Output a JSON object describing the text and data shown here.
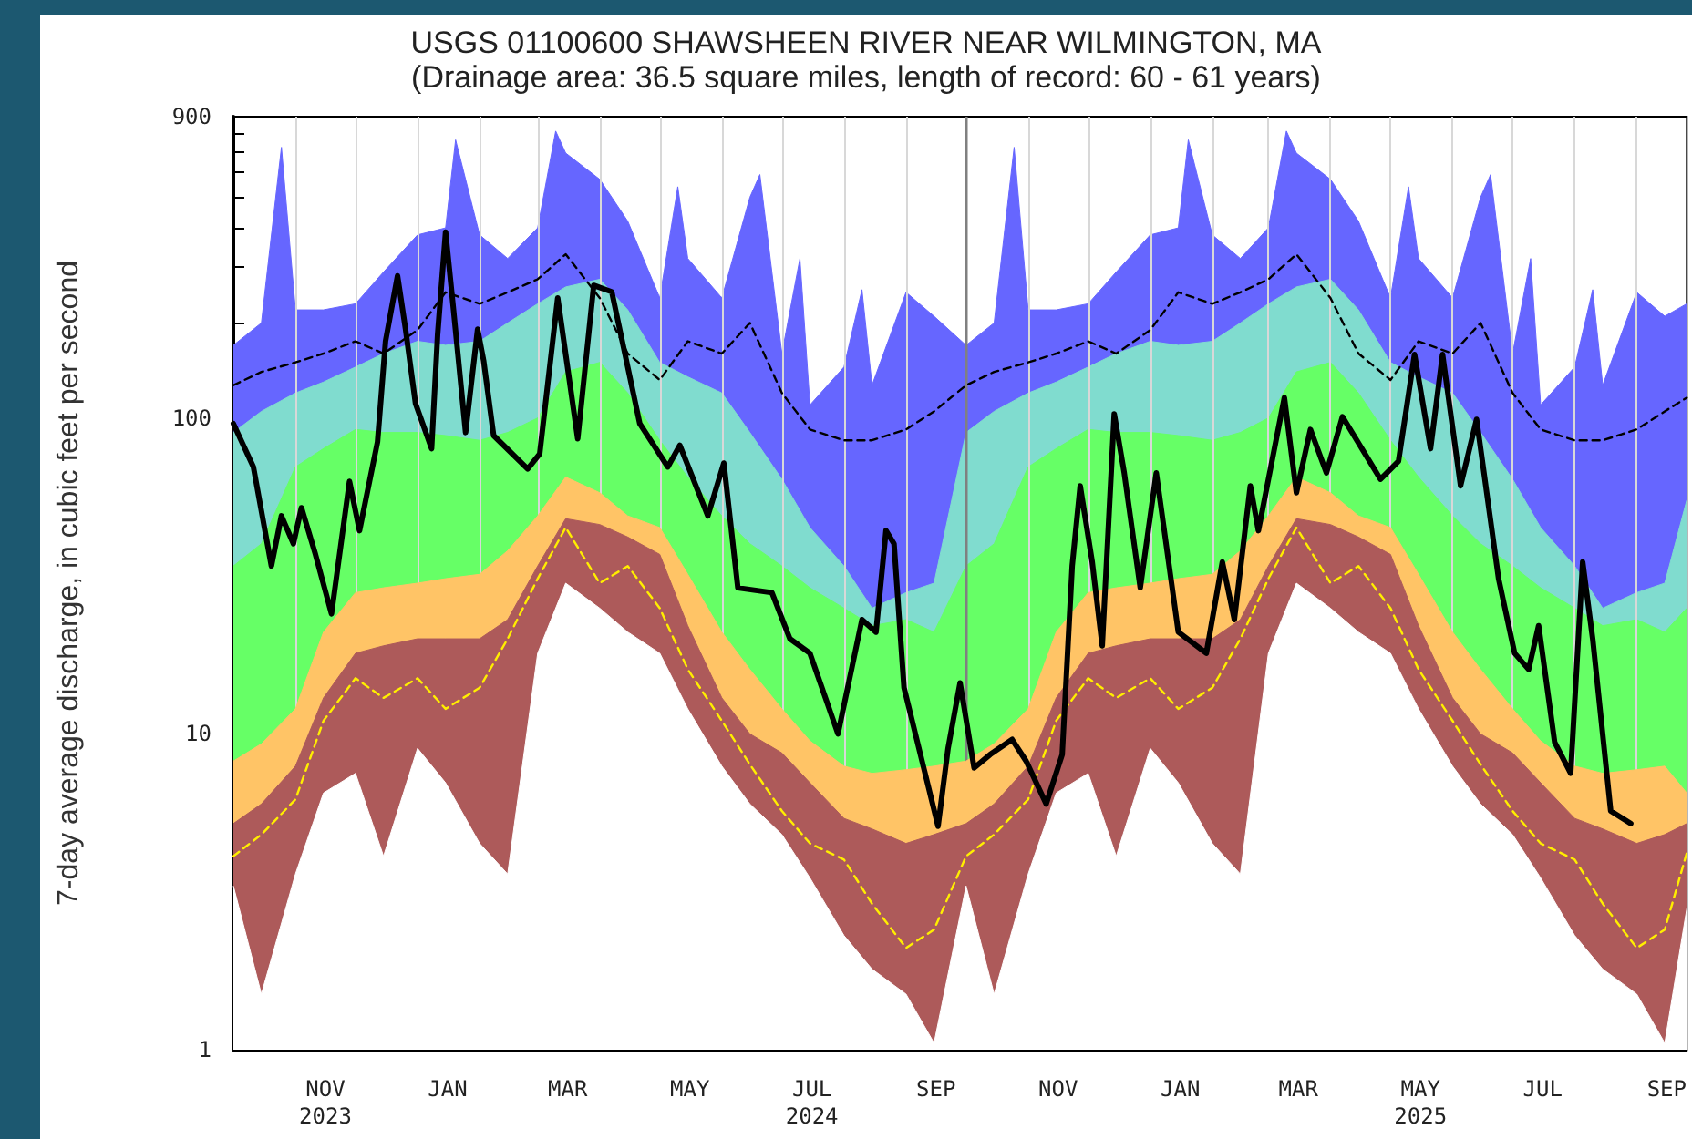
{
  "chart_data": {
    "type": "area",
    "title": "USGS 01100600 SHAWSHEEN RIVER NEAR WILMINGTON, MA",
    "subtitle": "(Drainage area: 36.5 square miles, length of record: 60 - 61 years)",
    "ylabel": "7-day average discharge, in cubic feet per second",
    "log": "y",
    "grid": "x",
    "xlim": [
      "2023-10-01",
      "2025-09-26"
    ],
    "ylim": [
      1,
      900
    ],
    "xticks": [
      {
        "value": "2023-11-01",
        "label": null
      },
      {
        "value": "2023-11-16",
        "label": "NOV\n2023"
      },
      {
        "value": "2023-12-01",
        "label": null
      },
      {
        "value": "2024-01-01",
        "label": null
      },
      {
        "value": "2024-01-16",
        "label": "JAN"
      },
      {
        "value": "2024-02-01",
        "label": null
      },
      {
        "value": "2024-03-01",
        "label": null
      },
      {
        "value": "2024-03-16",
        "label": "MAR"
      },
      {
        "value": "2024-04-01",
        "label": null
      },
      {
        "value": "2024-05-01",
        "label": null
      },
      {
        "value": "2024-05-16",
        "label": "MAY"
      },
      {
        "value": "2024-06-01",
        "label": null
      },
      {
        "value": "2024-07-01",
        "label": null
      },
      {
        "value": "2024-07-16",
        "label": "JUL\n2024"
      },
      {
        "value": "2024-08-01",
        "label": null
      },
      {
        "value": "2024-09-01",
        "label": null
      },
      {
        "value": "2024-09-16",
        "label": "SEP"
      },
      {
        "value": "2024-11-01",
        "label": null
      },
      {
        "value": "2024-11-16",
        "label": "NOV"
      },
      {
        "value": "2024-12-01",
        "label": null
      },
      {
        "value": "2025-01-01",
        "label": null
      },
      {
        "value": "2025-01-16",
        "label": "JAN"
      },
      {
        "value": "2025-02-01",
        "label": null
      },
      {
        "value": "2025-03-01",
        "label": null
      },
      {
        "value": "2025-03-16",
        "label": "MAR"
      },
      {
        "value": "2025-04-01",
        "label": null
      },
      {
        "value": "2025-05-01",
        "label": null
      },
      {
        "value": "2025-05-16",
        "label": "MAY\n2025"
      },
      {
        "value": "2025-06-01",
        "label": null
      },
      {
        "value": "2025-07-01",
        "label": null
      },
      {
        "value": "2025-07-16",
        "label": "JUL"
      },
      {
        "value": "2025-08-01",
        "label": null
      },
      {
        "value": "2025-09-01",
        "label": null
      },
      {
        "value": "2025-09-16",
        "label": "SEP"
      }
    ],
    "yticks": [
      1,
      {
        "value": 2,
        "label": null
      },
      {
        "value": 3,
        "label": null
      },
      {
        "value": 4,
        "label": null
      },
      {
        "value": 5,
        "label": null
      },
      {
        "value": 6,
        "label": null
      },
      {
        "value": 7,
        "label": null
      },
      {
        "value": 8,
        "label": null
      },
      {
        "value": 9,
        "label": null
      },
      10,
      {
        "value": 20,
        "label": null
      },
      {
        "value": 30,
        "label": null
      },
      {
        "value": 40,
        "label": null
      },
      {
        "value": 50,
        "label": null
      },
      {
        "value": 60,
        "label": null
      },
      {
        "value": 70,
        "label": null
      },
      {
        "value": 80,
        "label": null
      },
      {
        "value": 90,
        "label": null
      },
      100,
      {
        "value": 200,
        "label": null
      },
      {
        "value": 300,
        "label": null
      },
      {
        "value": 400,
        "label": null
      },
      {
        "value": 500,
        "label": null
      },
      {
        "value": 600,
        "label": null
      },
      {
        "value": 700,
        "label": null
      },
      {
        "value": 800,
        "label": null
      },
      900
    ],
    "ref_lines": [
      {
        "axis": "x",
        "value": "2024-10-01",
        "color": "#808080"
      }
    ],
    "x": [
      "2023-10-01",
      "2023-10-15",
      "2023-11-01",
      "2023-11-15",
      "2023-12-01",
      "2023-12-15",
      "2024-01-01",
      "2024-01-15",
      "2024-02-01",
      "2024-02-15",
      "2024-03-01",
      "2024-03-15",
      "2024-04-01",
      "2024-04-15",
      "2024-05-01",
      "2024-05-15",
      "2024-06-01",
      "2024-06-15",
      "2024-07-01",
      "2024-07-15",
      "2024-08-01",
      "2024-08-15",
      "2024-09-01",
      "2024-09-15",
      "2024-10-01",
      "2024-10-15",
      "2024-11-01",
      "2024-11-15",
      "2024-12-01",
      "2024-12-15",
      "2025-01-01",
      "2025-01-15",
      "2025-02-01",
      "2025-02-15",
      "2025-03-01",
      "2025-03-15",
      "2025-04-01",
      "2025-04-15",
      "2025-05-01",
      "2025-05-15",
      "2025-06-01",
      "2025-06-15",
      "2025-07-01",
      "2025-07-15",
      "2025-08-01",
      "2025-08-15",
      "2025-09-01",
      "2025-09-15",
      "2025-09-26"
    ],
    "series": [
      {
        "color": "#6666ff",
        "x": [
          "2023-10-01",
          "2023-10-15",
          "2023-10-25",
          "2023-11-01",
          "2023-11-15",
          "2023-12-01",
          "2023-12-15",
          "2024-01-01",
          "2024-01-15",
          "2024-01-20",
          "2024-02-01",
          "2024-02-15",
          "2024-03-01",
          "2024-03-10",
          "2024-03-15",
          "2024-04-01",
          "2024-04-15",
          "2024-05-01",
          "2024-05-10",
          "2024-05-15",
          "2024-06-01",
          "2024-06-15",
          "2024-06-20",
          "2024-07-01",
          "2024-07-10",
          "2024-07-15",
          "2024-08-01",
          "2024-08-10",
          "2024-08-15",
          "2024-09-01",
          "2024-09-15",
          "2024-10-01",
          "2024-10-15",
          "2024-10-25",
          "2024-11-01",
          "2024-11-15",
          "2024-12-01",
          "2024-12-15",
          "2025-01-01",
          "2025-01-15",
          "2025-01-20",
          "2025-02-01",
          "2025-02-15",
          "2025-03-01",
          "2025-03-10",
          "2025-03-15",
          "2025-04-01",
          "2025-04-15",
          "2025-05-01",
          "2025-05-10",
          "2025-05-15",
          "2025-06-01",
          "2025-06-15",
          "2025-06-20",
          "2025-07-01",
          "2025-07-10",
          "2025-07-15",
          "2025-08-01",
          "2025-08-10",
          "2025-08-15",
          "2025-09-01",
          "2025-09-15",
          "2025-09-26"
        ],
        "values": [
          170,
          200,
          720,
          220,
          220,
          230,
          290,
          380,
          400,
          760,
          380,
          320,
          400,
          810,
          690,
          570,
          420,
          240,
          540,
          320,
          240,
          500,
          590,
          160,
          320,
          110,
          145,
          255,
          127,
          250,
          210,
          170,
          200,
          720,
          220,
          220,
          230,
          290,
          380,
          400,
          760,
          380,
          320,
          400,
          810,
          690,
          570,
          420,
          240,
          540,
          320,
          240,
          500,
          590,
          160,
          320,
          110,
          145,
          255,
          127,
          250,
          210,
          230
        ]
      },
      {
        "color": "#80dccf",
        "values": [
          90,
          105,
          120,
          130,
          145,
          160,
          175,
          170,
          175,
          200,
          230,
          260,
          275,
          220,
          150,
          135,
          120,
          90,
          64,
          45,
          34,
          25,
          28,
          30,
          90,
          105,
          120,
          130,
          145,
          160,
          175,
          170,
          175,
          200,
          230,
          260,
          275,
          220,
          150,
          135,
          120,
          90,
          64,
          45,
          34,
          25,
          28,
          30,
          55
        ]
      },
      {
        "color": "#66ff66",
        "values": [
          34,
          40,
          70,
          80,
          92,
          90,
          90,
          88,
          85,
          90,
          100,
          140,
          150,
          120,
          85,
          65,
          49,
          40,
          34,
          29,
          25,
          22,
          23,
          21,
          34,
          40,
          70,
          80,
          92,
          90,
          90,
          88,
          85,
          90,
          100,
          140,
          150,
          120,
          85,
          65,
          49,
          40,
          34,
          29,
          25,
          22,
          23,
          21,
          25
        ]
      },
      {
        "color": "#ffc466",
        "values": [
          8.2,
          9.3,
          12,
          21,
          28,
          29,
          30,
          31,
          32,
          38,
          49,
          65,
          58,
          49,
          45,
          32,
          21,
          16,
          12,
          9.5,
          7.9,
          7.5,
          7.7,
          7.9,
          8.2,
          9.3,
          12,
          21,
          28,
          29,
          30,
          31,
          32,
          38,
          49,
          65,
          58,
          49,
          45,
          32,
          21,
          16,
          12,
          9.5,
          7.9,
          7.5,
          7.7,
          7.9,
          6.5
        ]
      },
      {
        "color": "#ad5a5a",
        "values": [
          5.2,
          6,
          7.9,
          13,
          18,
          19,
          20,
          20,
          20,
          23,
          34,
          48,
          46,
          42,
          37,
          22,
          13,
          10,
          8.7,
          7,
          5.4,
          5,
          4.5,
          4.8,
          5.2,
          6,
          7.9,
          13,
          18,
          19,
          20,
          20,
          20,
          23,
          34,
          48,
          46,
          42,
          37,
          22,
          13,
          10,
          8.7,
          7,
          5.4,
          5,
          4.5,
          4.8,
          5.2
        ]
      },
      {
        "color": "#ffffff",
        "values": [
          3.3,
          1.5,
          3.6,
          6.5,
          7.5,
          4.1,
          9,
          7,
          4.5,
          3.6,
          18,
          30,
          25,
          21,
          18,
          12,
          7.9,
          6,
          4.8,
          3.5,
          2.3,
          1.8,
          1.5,
          1.05,
          3.3,
          1.5,
          3.6,
          6.5,
          7.5,
          4.1,
          9,
          7,
          4.5,
          3.6,
          18,
          30,
          25,
          21,
          18,
          12,
          7.9,
          6,
          4.8,
          3.5,
          2.3,
          1.8,
          1.5,
          1.05,
          2.8
        ]
      },
      {
        "type": "line",
        "color": "#ffee00",
        "line_style": "dashed",
        "values": [
          4.1,
          4.8,
          6.2,
          11,
          15,
          13,
          15,
          12,
          14,
          20,
          31,
          45,
          30,
          34,
          25,
          16,
          11,
          8,
          5.7,
          4.5,
          4,
          2.9,
          2.1,
          2.4,
          4.1,
          4.8,
          6.2,
          11,
          15,
          13,
          15,
          12,
          14,
          20,
          31,
          45,
          30,
          34,
          25,
          16,
          11,
          8,
          5.7,
          4.5,
          4,
          2.9,
          2.1,
          2.4,
          4.2
        ]
      },
      {
        "type": "line",
        "color": "#000000",
        "line_style": "dashed",
        "values": [
          127,
          140,
          150,
          160,
          175,
          160,
          190,
          250,
          230,
          250,
          275,
          330,
          240,
          160,
          132,
          175,
          160,
          200,
          120,
          92,
          85,
          85,
          92,
          105,
          127,
          140,
          150,
          160,
          175,
          160,
          190,
          250,
          230,
          250,
          275,
          330,
          240,
          160,
          132,
          175,
          160,
          200,
          120,
          92,
          85,
          85,
          92,
          105,
          116
        ]
      },
      {
        "type": "line",
        "color": "#000000",
        "line_style": "solid",
        "x": [
          "2023-10-01",
          "2023-10-11",
          "2023-10-20",
          "2023-10-25",
          "2023-10-31",
          "2023-11-04",
          "2023-11-11",
          "2023-11-19",
          "2023-11-28",
          "2023-12-03",
          "2023-12-12",
          "2023-12-16",
          "2023-12-22",
          "2023-12-26",
          "2023-12-31",
          "2024-01-08",
          "2024-01-11",
          "2024-01-15",
          "2024-01-19",
          "2024-01-25",
          "2024-01-31",
          "2024-02-03",
          "2024-02-08",
          "2024-02-25",
          "2024-03-02",
          "2024-03-11",
          "2024-03-21",
          "2024-03-29",
          "2024-04-07",
          "2024-04-21",
          "2024-05-05",
          "2024-05-11",
          "2024-05-25",
          "2024-06-02",
          "2024-06-09",
          "2024-06-26",
          "2024-07-05",
          "2024-07-15",
          "2024-07-29",
          "2024-08-10",
          "2024-08-17",
          "2024-08-22",
          "2024-08-26",
          "2024-08-31",
          "2024-09-17",
          "2024-09-22",
          "2024-09-28",
          "2024-10-05",
          "2024-10-13",
          "2024-10-24",
          "2024-10-31",
          "2024-11-10",
          "2024-11-18",
          "2024-11-23",
          "2024-11-27",
          "2024-12-03",
          "2024-12-08",
          "2024-12-14",
          "2024-12-19",
          "2024-12-27",
          "2025-01-04",
          "2025-01-15",
          "2025-01-29",
          "2025-02-06",
          "2025-02-12",
          "2025-02-20",
          "2025-02-24",
          "2025-03-09",
          "2025-03-15",
          "2025-03-22",
          "2025-03-30",
          "2025-04-07",
          "2025-04-26",
          "2025-05-05",
          "2025-05-13",
          "2025-05-21",
          "2025-05-27",
          "2025-06-05",
          "2025-06-13",
          "2025-06-24",
          "2025-07-02",
          "2025-07-09",
          "2025-07-14",
          "2025-07-22",
          "2025-07-30",
          "2025-08-05",
          "2025-08-10",
          "2025-08-19",
          "2025-08-29"
        ],
        "values": [
          96,
          70,
          34,
          49,
          40,
          52,
          37,
          24,
          63,
          44,
          84,
          175,
          282,
          191,
          111,
          80,
          183,
          388,
          219,
          90,
          191,
          152,
          88,
          69,
          77,
          240,
          86,
          263,
          251,
          96,
          70,
          82,
          49,
          72,
          29,
          28,
          20,
          18,
          10,
          23,
          21,
          44,
          40,
          14,
          5.1,
          9,
          14.5,
          7.8,
          8.6,
          9.6,
          8.2,
          6,
          8.6,
          34,
          61,
          35,
          19,
          103,
          67,
          29,
          67,
          21,
          18,
          35,
          23,
          61,
          44,
          116,
          58,
          92,
          67,
          101,
          64,
          73,
          159,
          80,
          159,
          61,
          99,
          31,
          18,
          16,
          22,
          9.4,
          7.5,
          35,
          20,
          5.7,
          5.2
        ]
      }
    ]
  }
}
